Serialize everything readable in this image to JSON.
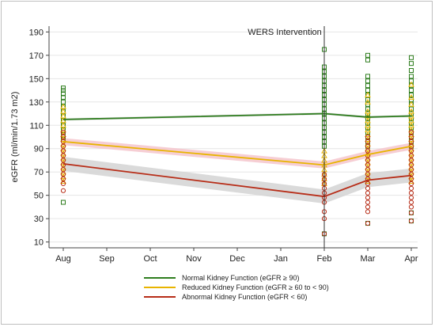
{
  "chart_data": {
    "type": "line",
    "ylabel": "eGFR (ml/min/1.73 m2)",
    "ylim": [
      5,
      195
    ],
    "yticks": [
      10,
      30,
      50,
      70,
      90,
      110,
      130,
      150,
      170,
      190
    ],
    "categories": [
      "Aug",
      "Sep",
      "Oct",
      "Nov",
      "Dec",
      "Jan",
      "Feb",
      "Mar",
      "Apr"
    ],
    "grid": true,
    "annotation": {
      "text": "WERS Intervention",
      "at_category": "Feb"
    },
    "legend_position": "bottom",
    "series": [
      {
        "name": "Normal Kidney Function (eGFR ≥ 90)",
        "color": "#2e7d1e",
        "band_color": "#d9d9d9",
        "marker": "square",
        "x": [
          "Aug",
          "Feb",
          "Mar",
          "Apr"
        ],
        "values": [
          115,
          120,
          117,
          118
        ],
        "band_halfwidth": 1,
        "points": {
          "Aug": [
            44,
            98,
            102,
            106,
            110,
            114,
            118,
            122,
            126,
            130,
            134,
            137,
            140,
            142
          ],
          "Feb": [
            17,
            92,
            96,
            100,
            104,
            108,
            112,
            116,
            120,
            124,
            128,
            132,
            136,
            140,
            144,
            148,
            152,
            156,
            160,
            175
          ],
          "Mar": [
            26,
            92,
            96,
            100,
            104,
            108,
            112,
            116,
            120,
            124,
            128,
            132,
            136,
            140,
            144,
            148,
            152,
            166,
            170
          ],
          "Apr": [
            28,
            35,
            92,
            96,
            100,
            104,
            108,
            112,
            116,
            120,
            124,
            128,
            132,
            136,
            140,
            144,
            148,
            152,
            157,
            163,
            168
          ]
        }
      },
      {
        "name": "Reduced Kidney Function (eGFR ≥ 60 to < 90)",
        "color": "#e8b400",
        "band_color": "#f4c6cc",
        "marker": "triangle",
        "x": [
          "Aug",
          "Feb",
          "Mar",
          "Apr"
        ],
        "values": [
          96,
          76,
          85,
          92
        ],
        "band_halfwidth": 3,
        "points": {
          "Aug": [
            62,
            66,
            70,
            74,
            78,
            82,
            86,
            90,
            94,
            98,
            102,
            106,
            110,
            114,
            118,
            122,
            126
          ],
          "Feb": [
            60,
            64,
            68,
            72,
            76,
            80,
            84,
            88
          ],
          "Mar": [
            62,
            66,
            70,
            74,
            78,
            82,
            86,
            90,
            94,
            98,
            102,
            106,
            110,
            114,
            118,
            122,
            130,
            136
          ],
          "Apr": [
            62,
            66,
            70,
            74,
            78,
            82,
            86,
            90,
            94,
            98,
            102,
            106,
            110,
            114,
            118,
            122,
            128,
            134,
            145
          ]
        }
      },
      {
        "name": "Abnormal Kidney Function (eGFR < 60)",
        "color": "#b72d18",
        "band_color": "#d4d4d4",
        "marker": "circle",
        "x": [
          "Aug",
          "Feb",
          "Mar",
          "Apr"
        ],
        "values": [
          77,
          49,
          63,
          67
        ],
        "band_halfwidth": 6,
        "points": {
          "Aug": [
            54,
            60,
            64,
            68,
            72,
            76,
            80,
            84,
            88,
            92,
            96,
            100,
            104
          ],
          "Feb": [
            17,
            30,
            36,
            44,
            48,
            52,
            56,
            60,
            64,
            68
          ],
          "Mar": [
            26,
            36,
            40,
            44,
            48,
            52,
            56,
            60,
            64,
            68,
            72,
            76,
            80,
            84,
            88,
            92,
            96,
            100
          ],
          "Apr": [
            28,
            35,
            40,
            44,
            48,
            52,
            56,
            60,
            64,
            68,
            72,
            76,
            80,
            84,
            88,
            92,
            96,
            100,
            104
          ]
        }
      }
    ]
  }
}
